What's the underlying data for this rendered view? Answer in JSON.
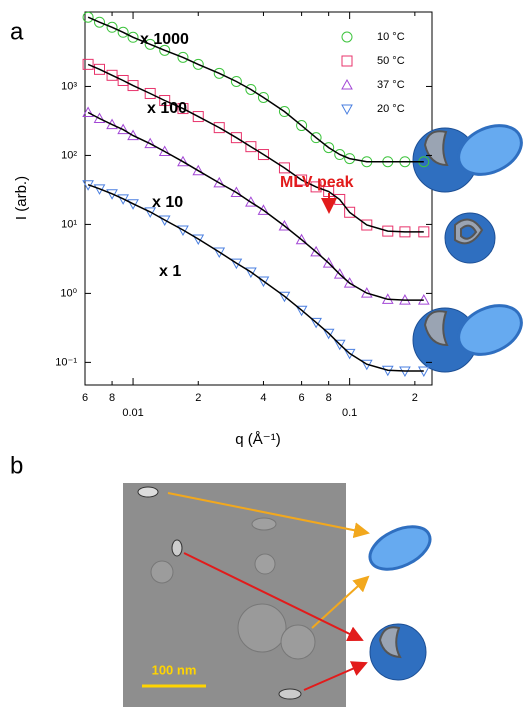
{
  "panel_a": "a",
  "panel_b": "b",
  "chart_data": {
    "type": "scatter",
    "x_label": "q (Å⁻¹)",
    "y_label": "I (arb.)",
    "log_x": true,
    "log_y": true,
    "legend": "upper right",
    "fit_color": "#000000",
    "xlim": [
      0.006,
      0.24
    ],
    "ylim": [
      0.047,
      12000
    ],
    "xticks": [
      {
        "value": 0.006,
        "label": "6"
      },
      {
        "value": 0.008,
        "label": "8"
      },
      0.01,
      {
        "value": 0.02,
        "label": "2"
      },
      {
        "value": 0.04,
        "label": "4"
      },
      {
        "value": 0.06,
        "label": "6"
      },
      {
        "value": 0.08,
        "label": "8"
      },
      0.1,
      {
        "value": 0.2,
        "label": "2"
      }
    ],
    "yticks": [
      {
        "value": 0.1,
        "label": "10⁻¹"
      },
      {
        "value": 1,
        "label": "10⁰"
      },
      {
        "value": 10,
        "label": "10¹"
      },
      {
        "value": 100,
        "label": "10²"
      },
      {
        "value": 1000,
        "label": "10³"
      }
    ],
    "x": [
      0.0062,
      0.007,
      0.008,
      0.009,
      0.01,
      0.012,
      0.014,
      0.017,
      0.02,
      0.025,
      0.03,
      0.035,
      0.04,
      0.05,
      0.06,
      0.07,
      0.08,
      0.09,
      0.1,
      0.12,
      0.15,
      0.18,
      0.22
    ],
    "series": [
      {
        "name": "10 °C",
        "marker": "circle",
        "color": "#3ec43e",
        "values": [
          10090,
          8530,
          7210,
          6100,
          5160,
          4080,
          3340,
          2640,
          2090,
          1550,
          1180,
          904,
          692,
          433,
          271,
          181,
          130,
          103,
          90,
          81,
          81,
          81,
          81
        ]
      },
      {
        "name": "50 °C",
        "marker": "square",
        "color": "#e8336b",
        "values": [
          2090,
          1770,
          1450,
          1220,
          1030,
          791,
          625,
          478,
          366,
          253,
          181,
          134,
          103,
          66,
          44,
          35,
          30,
          23,
          15,
          9.8,
          8.0,
          7.8,
          7.8
        ]
      },
      {
        "name": "37 °C",
        "marker": "triangle-up",
        "color": "#a347d6",
        "values": [
          419,
          343,
          280,
          237,
          194,
          148,
          114,
          81,
          60,
          40,
          29,
          21,
          16,
          9.5,
          6.0,
          4.0,
          2.75,
          1.9,
          1.41,
          1.01,
          0.82,
          0.8,
          0.8
        ]
      },
      {
        "name": "20 °C",
        "marker": "triangle-down",
        "color": "#4a7fe0",
        "values": [
          37.6,
          32.8,
          27.8,
          23.5,
          19.9,
          15.2,
          11.6,
          8.3,
          6.15,
          3.98,
          2.75,
          2.04,
          1.51,
          0.91,
          0.57,
          0.38,
          0.264,
          0.183,
          0.135,
          0.094,
          0.077,
          0.075,
          0.075
        ]
      }
    ],
    "annotations": [
      "x 1000",
      "x 100",
      "x 10",
      "x 1",
      "MLV peak"
    ]
  },
  "micrograph": {
    "scale_bar": "100 nm"
  }
}
